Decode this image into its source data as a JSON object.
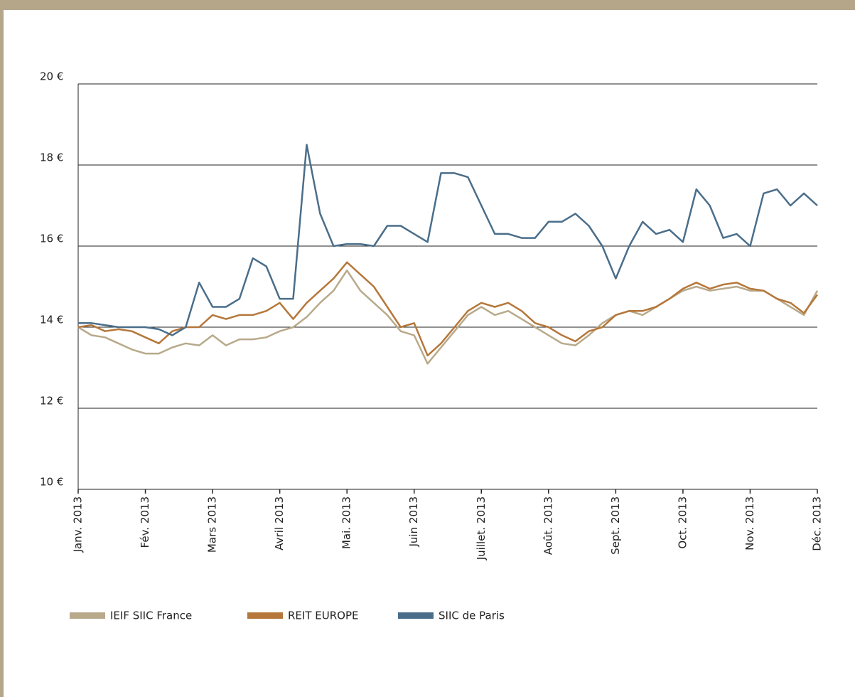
{
  "chart_data": {
    "type": "line",
    "categories": [
      "Janv. 2013",
      null,
      null,
      null,
      null,
      "Fév. 2013",
      null,
      null,
      null,
      null,
      "Mars 2013",
      null,
      null,
      null,
      null,
      "Avril 2013",
      null,
      null,
      null,
      null,
      "Mai. 2013",
      null,
      null,
      null,
      null,
      "Juin 2013",
      null,
      null,
      null,
      null,
      "Juillet. 2013",
      null,
      null,
      null,
      null,
      "Août. 2013",
      null,
      null,
      null,
      null,
      "Sept. 2013",
      null,
      null,
      null,
      null,
      "Oct. 2013",
      null,
      null,
      null,
      null,
      "Nov. 2013",
      null,
      null,
      null,
      null,
      "Déc. 2013"
    ],
    "series": [
      {
        "name": "IEIF SIIC France",
        "color": "#b8a98a",
        "values": [
          14.0,
          13.8,
          13.75,
          13.6,
          13.45,
          13.35,
          13.35,
          13.5,
          13.6,
          13.55,
          13.8,
          13.55,
          13.7,
          13.7,
          13.75,
          13.9,
          14.0,
          14.25,
          14.6,
          14.9,
          15.4,
          14.9,
          14.6,
          14.3,
          13.9,
          13.8,
          13.1,
          13.5,
          13.9,
          14.3,
          14.5,
          14.3,
          14.4,
          14.2,
          14.0,
          13.8,
          13.6,
          13.55,
          13.8,
          14.1,
          14.3,
          14.4,
          14.3,
          14.5,
          14.7,
          14.9,
          15.0,
          14.9,
          14.95,
          15.0,
          14.9,
          14.9,
          14.7,
          14.5,
          14.3,
          14.9
        ]
      },
      {
        "name": "REIT EUROPE",
        "color": "#b5773a",
        "values": [
          14.0,
          14.05,
          13.9,
          13.95,
          13.9,
          13.75,
          13.6,
          13.9,
          14.0,
          14.0,
          14.3,
          14.2,
          14.3,
          14.3,
          14.4,
          14.6,
          14.2,
          14.6,
          14.9,
          15.2,
          15.6,
          15.3,
          15.0,
          14.5,
          14.0,
          14.1,
          13.3,
          13.6,
          14.0,
          14.4,
          14.6,
          14.5,
          14.6,
          14.4,
          14.1,
          14.0,
          13.8,
          13.65,
          13.9,
          14.0,
          14.3,
          14.4,
          14.4,
          14.5,
          14.7,
          14.95,
          15.1,
          14.95,
          15.05,
          15.1,
          14.95,
          14.9,
          14.7,
          14.6,
          14.35,
          14.8
        ]
      },
      {
        "name": "SIIC de Paris",
        "color": "#4a6e8a",
        "values": [
          14.1,
          14.1,
          14.05,
          14.0,
          14.0,
          14.0,
          13.95,
          13.8,
          14.0,
          15.1,
          14.5,
          14.5,
          14.7,
          15.7,
          15.5,
          14.7,
          14.7,
          18.5,
          16.8,
          16.0,
          16.05,
          16.05,
          16.0,
          16.5,
          16.5,
          16.3,
          16.1,
          17.8,
          17.8,
          17.7,
          17.0,
          16.3,
          16.3,
          16.2,
          16.2,
          16.6,
          16.6,
          16.8,
          16.5,
          16.0,
          15.2,
          16.0,
          16.6,
          16.3,
          16.4,
          16.1,
          17.4,
          17.0,
          16.2,
          16.3,
          16.0,
          17.3,
          17.4,
          17.0,
          17.3,
          17.0
        ]
      }
    ],
    "ylim": [
      10,
      20
    ],
    "yticks": [
      {
        "value": 10,
        "label": "10 €"
      },
      {
        "value": 12,
        "label": "12 €"
      },
      {
        "value": 14,
        "label": "14 €"
      },
      {
        "value": 16,
        "label": "16 €"
      },
      {
        "value": 18,
        "label": "18 €"
      },
      {
        "value": 20,
        "label": "20 €"
      }
    ],
    "grid": true
  }
}
